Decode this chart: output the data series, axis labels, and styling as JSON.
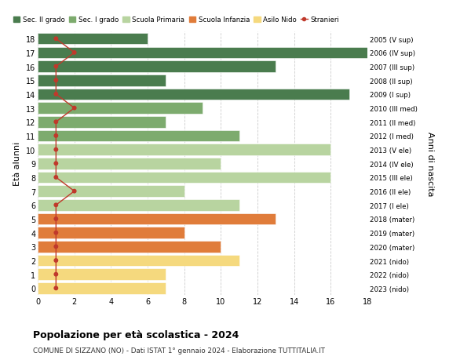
{
  "ages": [
    18,
    17,
    16,
    15,
    14,
    13,
    12,
    11,
    10,
    9,
    8,
    7,
    6,
    5,
    4,
    3,
    2,
    1,
    0
  ],
  "years_labels": [
    "2005 (V sup)",
    "2006 (IV sup)",
    "2007 (III sup)",
    "2008 (II sup)",
    "2009 (I sup)",
    "2010 (III med)",
    "2011 (II med)",
    "2012 (I med)",
    "2013 (V ele)",
    "2014 (IV ele)",
    "2015 (III ele)",
    "2016 (II ele)",
    "2017 (I ele)",
    "2018 (mater)",
    "2019 (mater)",
    "2020 (mater)",
    "2021 (nido)",
    "2022 (nido)",
    "2023 (nido)"
  ],
  "bar_values": [
    6,
    18,
    13,
    7,
    17,
    9,
    7,
    11,
    16,
    10,
    16,
    8,
    11,
    13,
    8,
    10,
    11,
    7,
    7
  ],
  "bar_colors": [
    "#4a7c4e",
    "#4a7c4e",
    "#4a7c4e",
    "#4a7c4e",
    "#4a7c4e",
    "#7dab6e",
    "#7dab6e",
    "#7dab6e",
    "#b8d4a0",
    "#b8d4a0",
    "#b8d4a0",
    "#b8d4a0",
    "#b8d4a0",
    "#e07c3a",
    "#e07c3a",
    "#e07c3a",
    "#f5d97e",
    "#f5d97e",
    "#f5d97e"
  ],
  "stranieri_values": [
    1,
    2,
    1,
    1,
    1,
    2,
    1,
    1,
    1,
    1,
    1,
    2,
    1,
    1,
    1,
    1,
    1,
    1,
    1
  ],
  "xlim": [
    0,
    18
  ],
  "ylim": [
    -0.5,
    18.5
  ],
  "title": "Popolazione per età scolastica - 2024",
  "subtitle": "COMUNE DI SIZZANO (NO) - Dati ISTAT 1° gennaio 2024 - Elaborazione TUTTITALIA.IT",
  "ylabel": "Età alunni",
  "ylabel2": "Anni di nascita",
  "legend_labels": [
    "Sec. II grado",
    "Sec. I grado",
    "Scuola Primaria",
    "Scuola Infanzia",
    "Asilo Nido",
    "Stranieri"
  ],
  "legend_colors": [
    "#4a7c4e",
    "#7dab6e",
    "#b8d4a0",
    "#e07c3a",
    "#f5d97e",
    "#c0392b"
  ],
  "color_stranieri": "#c0392b",
  "bar_height": 0.82,
  "grid_color": "#cccccc",
  "bg_color": "#ffffff",
  "xticks": [
    0,
    2,
    4,
    6,
    8,
    10,
    12,
    14,
    16,
    18
  ]
}
